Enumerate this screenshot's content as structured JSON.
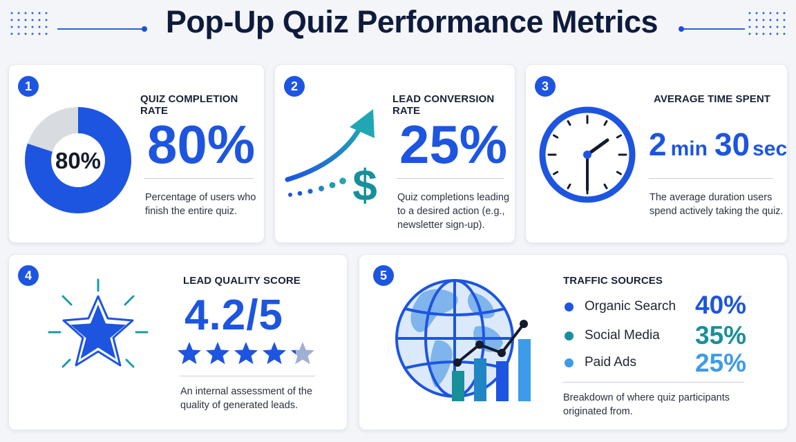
{
  "page": {
    "title": "Pop-Up Quiz Performance Metrics"
  },
  "colors": {
    "primary": "#1d55e0",
    "teal": "#17909a",
    "light_blue": "#3d9be9",
    "donut_track": "#d8dbe0",
    "star_empty": "#9fb0d4"
  },
  "cards": [
    {
      "number": "1",
      "label": "QUIZ COMPLETION RATE",
      "value": "80%",
      "donut_center": "80%",
      "fraction": 0.8,
      "description": [
        "Percentage of users who",
        "finish the entire quiz."
      ],
      "icon": "donut-chart-icon"
    },
    {
      "number": "2",
      "label": "LEAD CONVERSION RATE",
      "value": "25%",
      "description": [
        "Quiz completions leading",
        "to a desired action (e.g.,",
        "newsletter sign-up)."
      ],
      "icon": "growth-arrow-dollar-icon"
    },
    {
      "number": "3",
      "label": "AVERAGE TIME SPENT",
      "value_num1": "2",
      "value_unit1": "min",
      "value_num2": "30",
      "value_unit2": "sec",
      "description": [
        "The average duration users",
        "spend actively taking the quiz."
      ],
      "icon": "clock-icon"
    },
    {
      "number": "4",
      "label": "LEAD QUALITY SCORE",
      "value": "4.2/5",
      "rating": 4.2,
      "rating_max": 5,
      "description": [
        "An internal assessment of the",
        "quality of generated leads."
      ],
      "icon": "star-burst-icon"
    },
    {
      "number": "5",
      "label": "TRAFFIC SOURCES",
      "sources": [
        {
          "name": "Organic Search",
          "value": "40%",
          "color": "#1d55e0"
        },
        {
          "name": "Social Media",
          "value": "35%",
          "color": "#17909a"
        },
        {
          "name": "Paid Ads",
          "value": "25%",
          "color": "#3d9be9"
        }
      ],
      "description": [
        "Breakdown of where quiz participants",
        "originated from."
      ],
      "icon": "globe-bar-chart-icon"
    }
  ]
}
